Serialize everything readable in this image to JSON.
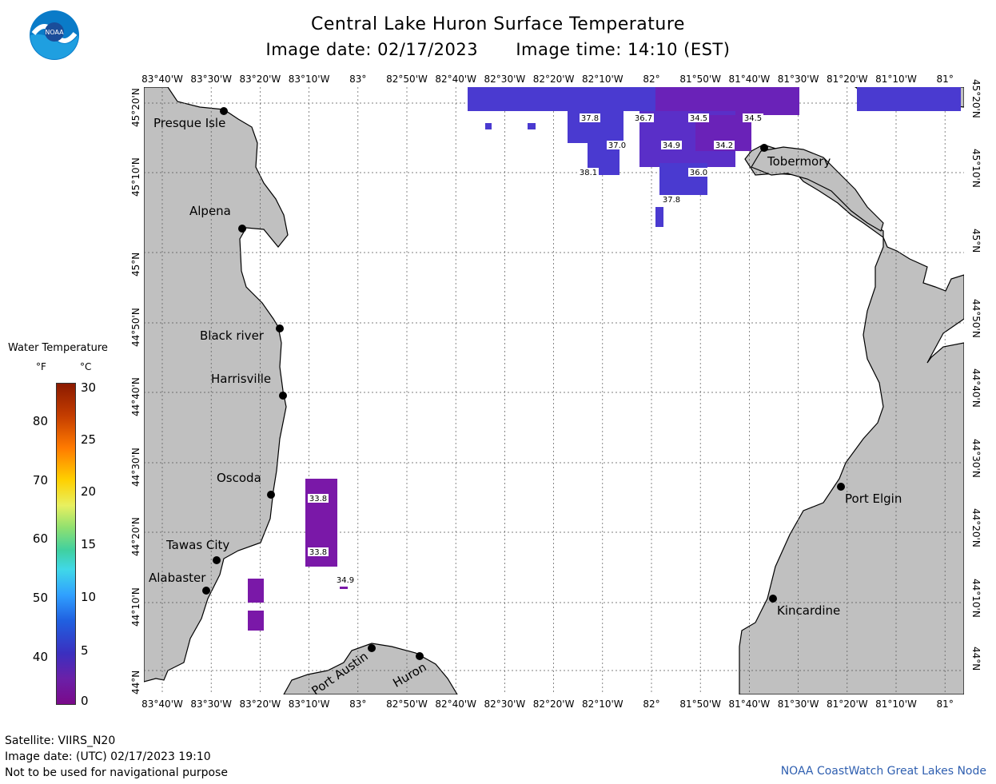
{
  "header": {
    "title": "Central Lake Huron Surface Temperature",
    "image_date": "Image date: 02/17/2023",
    "image_time": "Image time: 14:10 (EST)"
  },
  "logo": {
    "text": "NOAA",
    "icon": "noaa-logo-icon"
  },
  "lon_ticks": [
    "83°40'W",
    "83°30'W",
    "83°20'W",
    "83°10'W",
    "83°",
    "82°50'W",
    "82°40'W",
    "82°30'W",
    "82°20'W",
    "82°10'W",
    "82°",
    "81°50'W",
    "81°40'W",
    "81°30'W",
    "81°20'W",
    "81°10'W",
    "81°"
  ],
  "lat_ticks": [
    "45°20'N",
    "45°10'N",
    "45°N",
    "44°50'N",
    "44°40'N",
    "44°30'N",
    "44°20'N",
    "44°10'N",
    "44°N"
  ],
  "cities": [
    {
      "name": "Presque Isle"
    },
    {
      "name": "Alpena"
    },
    {
      "name": "Black river"
    },
    {
      "name": "Harrisville"
    },
    {
      "name": "Oscoda"
    },
    {
      "name": "Tawas City"
    },
    {
      "name": "Alabaster"
    },
    {
      "name": "Port Austin"
    },
    {
      "name": "Huron"
    },
    {
      "name": "Tobermory"
    },
    {
      "name": "Port Elgin"
    },
    {
      "name": "Kincardine"
    }
  ],
  "temp_labels": [
    "37.8",
    "36.7",
    "34.5",
    "34.5",
    "37.0",
    "34.9",
    "34.2",
    "38.1",
    "36.0",
    "37.8",
    "33.8",
    "33.8",
    "34.9"
  ],
  "legend": {
    "title": "Water Temperature",
    "unit_f": "°F",
    "unit_c": "°C",
    "f_ticks": [
      "80",
      "70",
      "60",
      "50",
      "40"
    ],
    "c_ticks": [
      "30",
      "25",
      "20",
      "15",
      "10",
      "5",
      "0"
    ],
    "colors": {
      "land": "#c0c0c0",
      "water": "#ffffff",
      "cold": "#7a18a8",
      "cool": "#4a3ad0"
    }
  },
  "footer": {
    "satellite": "Satellite: VIIRS_N20",
    "utc_date": "Image date: (UTC) 02/17/2023  19:10",
    "disclaimer": "Not to be used for navigational purpose",
    "credit": "NOAA CoastWatch Great Lakes Node"
  }
}
